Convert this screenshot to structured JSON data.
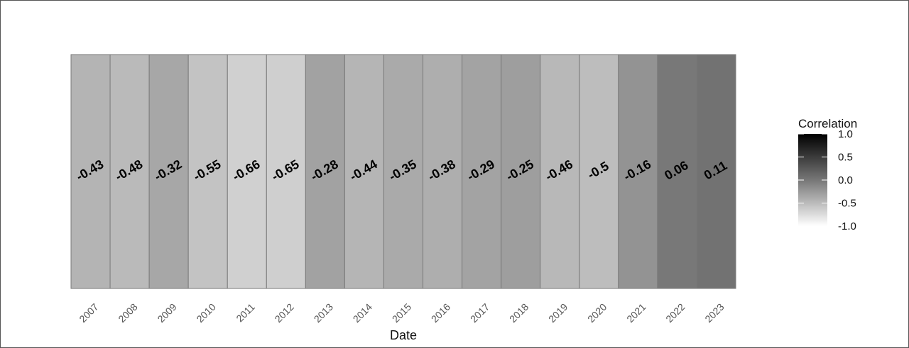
{
  "chart_data": {
    "type": "heatmap",
    "title": "",
    "xlabel": "Date",
    "ylabel": "",
    "categories": [
      "2007",
      "2008",
      "2009",
      "2010",
      "2011",
      "2012",
      "2013",
      "2014",
      "2015",
      "2016",
      "2017",
      "2018",
      "2019",
      "2020",
      "2021",
      "2022",
      "2023"
    ],
    "values": [
      -0.43,
      -0.48,
      -0.32,
      -0.55,
      -0.66,
      -0.65,
      -0.28,
      -0.44,
      -0.35,
      -0.38,
      -0.29,
      -0.25,
      -0.46,
      -0.5,
      -0.16,
      0.06,
      0.11
    ],
    "value_labels": [
      "-0.43",
      "-0.48",
      "-0.32",
      "-0.55",
      "-0.66",
      "-0.65",
      "-0.28",
      "-0.44",
      "-0.35",
      "-0.38",
      "-0.29",
      "-0.25",
      "-0.46",
      "-0.5",
      "-0.16",
      "0.06",
      "0.11"
    ],
    "legend": {
      "title": "Correlation",
      "ticks": [
        "1.0",
        "0.5",
        "0.0",
        "-0.5",
        "-1.0"
      ],
      "tick_values": [
        1.0,
        0.5,
        0.0,
        -0.5,
        -1.0
      ],
      "range": [
        -1.0,
        1.0
      ],
      "low_color": "#ffffff",
      "high_color": "#000000",
      "placement": "right"
    },
    "grid": false
  }
}
